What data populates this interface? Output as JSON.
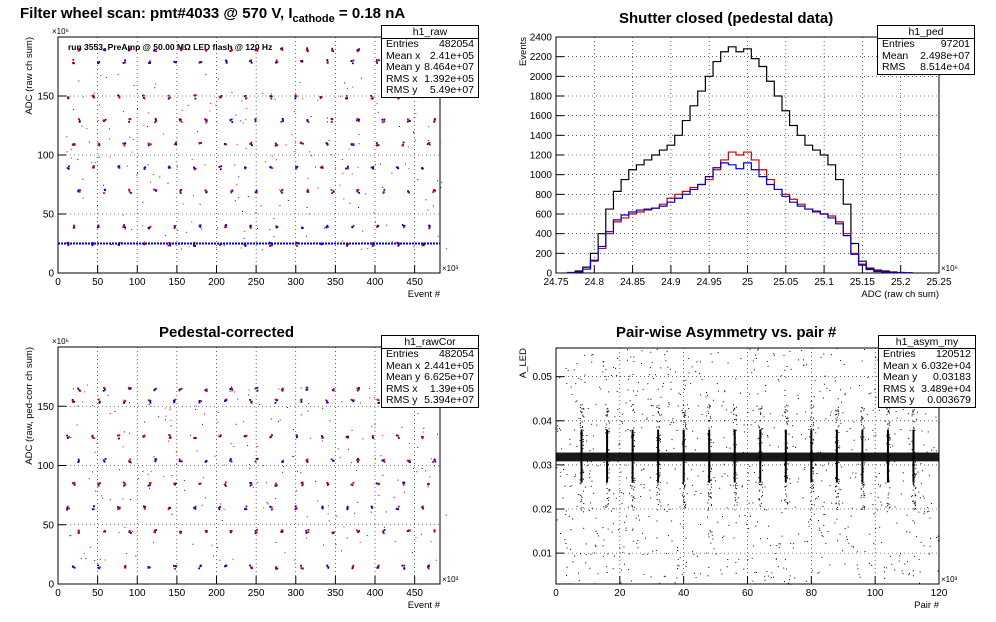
{
  "pads": [
    {
      "id": "raw",
      "title": "Filter wheel scan: pmt#4033 @   570 V, I",
      "title_sub": "cathode",
      "title_tail": " = 0.18 nA",
      "annotation": "run 3553, PreAmp @ 50.00 MΩ LED flash @  120 Hz",
      "stats": {
        "name": "h1_raw",
        "rows": [
          {
            "k": "Entries",
            "v": "482054"
          },
          {
            "k": "Mean x",
            "v": "2.41e+05"
          },
          {
            "k": "Mean y",
            "v": "8.464e+07"
          },
          {
            "k": "RMS x",
            "v": "1.392e+05"
          },
          {
            "k": "RMS y",
            "v": "5.49e+07"
          }
        ]
      }
    },
    {
      "id": "ped",
      "title": "Shutter closed (pedestal data)",
      "stats": {
        "name": "h1_ped",
        "rows": [
          {
            "k": "Entries",
            "v": "97201"
          },
          {
            "k": "Mean",
            "v": "2.498e+07"
          },
          {
            "k": "RMS",
            "v": "8.514e+04"
          }
        ]
      }
    },
    {
      "id": "cor",
      "title": "Pedestal-corrected",
      "stats": {
        "name": "h1_rawCor",
        "rows": [
          {
            "k": "Entries",
            "v": "482054"
          },
          {
            "k": "Mean x",
            "v": "2.441e+05"
          },
          {
            "k": "Mean y",
            "v": "6.625e+07"
          },
          {
            "k": "RMS x",
            "v": "1.39e+05"
          },
          {
            "k": "RMS y",
            "v": "5.394e+07"
          }
        ]
      }
    },
    {
      "id": "asym",
      "title": "Pair-wise Asymmetry vs. pair #",
      "stats": {
        "name": "h1_asym_my",
        "rows": [
          {
            "k": "Entries",
            "v": "120512"
          },
          {
            "k": "Mean x",
            "v": "6.032e+04"
          },
          {
            "k": "Mean y",
            "v": "0.03183"
          },
          {
            "k": "RMS x",
            "v": "3.489e+04"
          },
          {
            "k": "RMS y",
            "v": "0.003679"
          }
        ]
      }
    }
  ],
  "chart_data": [
    {
      "type": "scatter",
      "title": "Filter wheel scan: pmt#4033 @   570 V, I cathode = 0.18 nA",
      "xlabel": "Event #",
      "ylabel": "ADC (raw ch sum)",
      "x_multiplier": "×10³",
      "y_multiplier": "×10⁶",
      "xlim": [
        0,
        482
      ],
      "ylim": [
        0,
        200
      ],
      "grid": true,
      "x_ticks": [
        "0",
        "50",
        "100",
        "150",
        "200",
        "250",
        "300",
        "350",
        "400",
        "450"
      ],
      "y_ticks": [
        "0",
        "50",
        "100",
        "150"
      ],
      "colors": {
        "marker_a": "#0000cc",
        "marker_b": "#dd0000",
        "baseline": "#0000cc"
      },
      "series": [
        {
          "values_description_levels": [
            25,
            40,
            70,
            90,
            110,
            130,
            150,
            180,
            190
          ]
        }
      ],
      "pedestal_level": 25,
      "step_period_x": 32,
      "n_steps": 15
    },
    {
      "type": "line",
      "title": "Shutter closed (pedestal data)",
      "xlabel": "ADC (raw ch sum)",
      "ylabel": "Events",
      "x_multiplier": "×10⁶",
      "xlim": [
        24.75,
        25.25
      ],
      "ylim": [
        0,
        2400
      ],
      "grid": true,
      "x_ticks": [
        "24.75",
        "24.8",
        "24.85",
        "24.9",
        "24.95",
        "25",
        "25.05",
        "25.1",
        "25.15",
        "25.2",
        "25.25"
      ],
      "y_ticks": [
        "0",
        "200",
        "400",
        "600",
        "800",
        "1000",
        "1200",
        "1400",
        "1600",
        "1800",
        "2000",
        "2200",
        "2400"
      ],
      "x": [
        24.77,
        24.78,
        24.79,
        24.8,
        24.81,
        24.82,
        24.83,
        24.84,
        24.85,
        24.86,
        24.87,
        24.88,
        24.89,
        24.9,
        24.91,
        24.92,
        24.93,
        24.94,
        24.95,
        24.96,
        24.97,
        24.98,
        24.99,
        25.0,
        25.01,
        25.02,
        25.03,
        25.04,
        25.05,
        25.06,
        25.07,
        25.08,
        25.09,
        25.1,
        25.11,
        25.12,
        25.13,
        25.14,
        25.15,
        25.16,
        25.17,
        25.18,
        25.19,
        25.2,
        25.21
      ],
      "series": [
        {
          "color": "#000000",
          "values": [
            5,
            20,
            60,
            200,
            400,
            650,
            830,
            950,
            1050,
            1100,
            1150,
            1200,
            1250,
            1300,
            1400,
            1550,
            1700,
            1850,
            2000,
            2150,
            2250,
            2300,
            2250,
            2280,
            2180,
            2100,
            1950,
            1800,
            1650,
            1500,
            1400,
            1300,
            1250,
            1200,
            1100,
            950,
            700,
            300,
            120,
            50,
            30,
            20,
            10,
            5,
            2
          ]
        },
        {
          "color": "#cc0000",
          "values": [
            2,
            10,
            40,
            120,
            250,
            400,
            520,
            560,
            600,
            620,
            640,
            660,
            700,
            760,
            800,
            830,
            870,
            900,
            950,
            1050,
            1150,
            1230,
            1200,
            1230,
            1150,
            1050,
            950,
            850,
            800,
            750,
            700,
            650,
            620,
            600,
            580,
            520,
            400,
            200,
            90,
            40,
            20,
            10,
            5,
            2,
            1
          ]
        },
        {
          "color": "#0000cc",
          "values": [
            2,
            10,
            40,
            130,
            270,
            420,
            540,
            590,
            620,
            640,
            650,
            660,
            680,
            720,
            760,
            800,
            850,
            900,
            980,
            1070,
            1120,
            1100,
            1060,
            1120,
            1050,
            980,
            900,
            850,
            780,
            720,
            680,
            650,
            630,
            600,
            560,
            500,
            380,
            190,
            80,
            35,
            15,
            8,
            4,
            2,
            1
          ]
        }
      ]
    },
    {
      "type": "scatter",
      "title": "Pedestal-corrected",
      "xlabel": "Event #",
      "ylabel": "ADC (raw, ped-corr ch sum)",
      "x_multiplier": "×10³",
      "y_multiplier": "×10⁶",
      "xlim": [
        0,
        482
      ],
      "ylim": [
        0,
        200
      ],
      "grid": true,
      "x_ticks": [
        "0",
        "50",
        "100",
        "150",
        "200",
        "250",
        "300",
        "350",
        "400",
        "450"
      ],
      "y_ticks": [
        "0",
        "50",
        "100",
        "150"
      ],
      "colors": {
        "marker_a": "#0000cc",
        "marker_b": "#dd0000"
      },
      "series": [
        {
          "values_description_levels": [
            0,
            15,
            45,
            65,
            85,
            105,
            125,
            155,
            165
          ]
        }
      ],
      "step_period_x": 32,
      "n_steps": 15
    },
    {
      "type": "scatter",
      "title": "Pair-wise Asymmetry vs. pair #",
      "xlabel": "Pair #",
      "ylabel": "A_LED",
      "x_multiplier": "×10³",
      "xlim": [
        0,
        120
      ],
      "ylim": [
        0.003,
        0.0565
      ],
      "grid": true,
      "x_ticks": [
        "0",
        "20",
        "40",
        "60",
        "80",
        "100",
        "120"
      ],
      "y_ticks": [
        "0.01",
        "0.02",
        "0.03",
        "0.04",
        "0.05"
      ],
      "colors": {
        "points": "#000000"
      },
      "band_center": 0.0318,
      "band_halfwidth": 0.001,
      "spike_x": [
        8,
        16,
        24,
        32,
        40,
        48,
        56,
        64,
        72,
        80,
        88,
        96,
        104,
        112
      ]
    }
  ]
}
